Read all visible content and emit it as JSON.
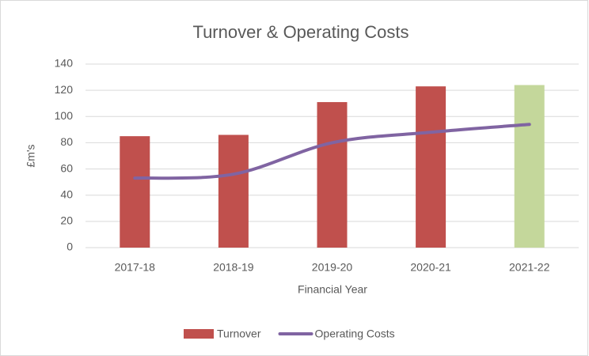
{
  "chart_data": {
    "type": "bar",
    "title": "Turnover & Operating Costs",
    "x_label": "Financial Year",
    "y_label": "£m's",
    "categories": [
      "2017-18",
      "2018-19",
      "2019-20",
      "2020-21",
      "2021-22"
    ],
    "series": [
      {
        "name": "Turnover",
        "type": "bar",
        "color": "#c0504d",
        "point_colors": [
          "#c0504d",
          "#c0504d",
          "#c0504d",
          "#c0504d",
          "#c4d79b"
        ],
        "values": [
          85,
          86,
          111,
          123,
          124
        ]
      },
      {
        "name": "Operating Costs",
        "type": "line",
        "color": "#8064a2",
        "values": [
          53,
          56,
          80,
          88,
          94
        ]
      }
    ],
    "ylim": [
      0,
      140
    ],
    "yticks": [
      0,
      20,
      40,
      60,
      80,
      100,
      120,
      140
    ],
    "grid": true,
    "legend": "bottom"
  }
}
